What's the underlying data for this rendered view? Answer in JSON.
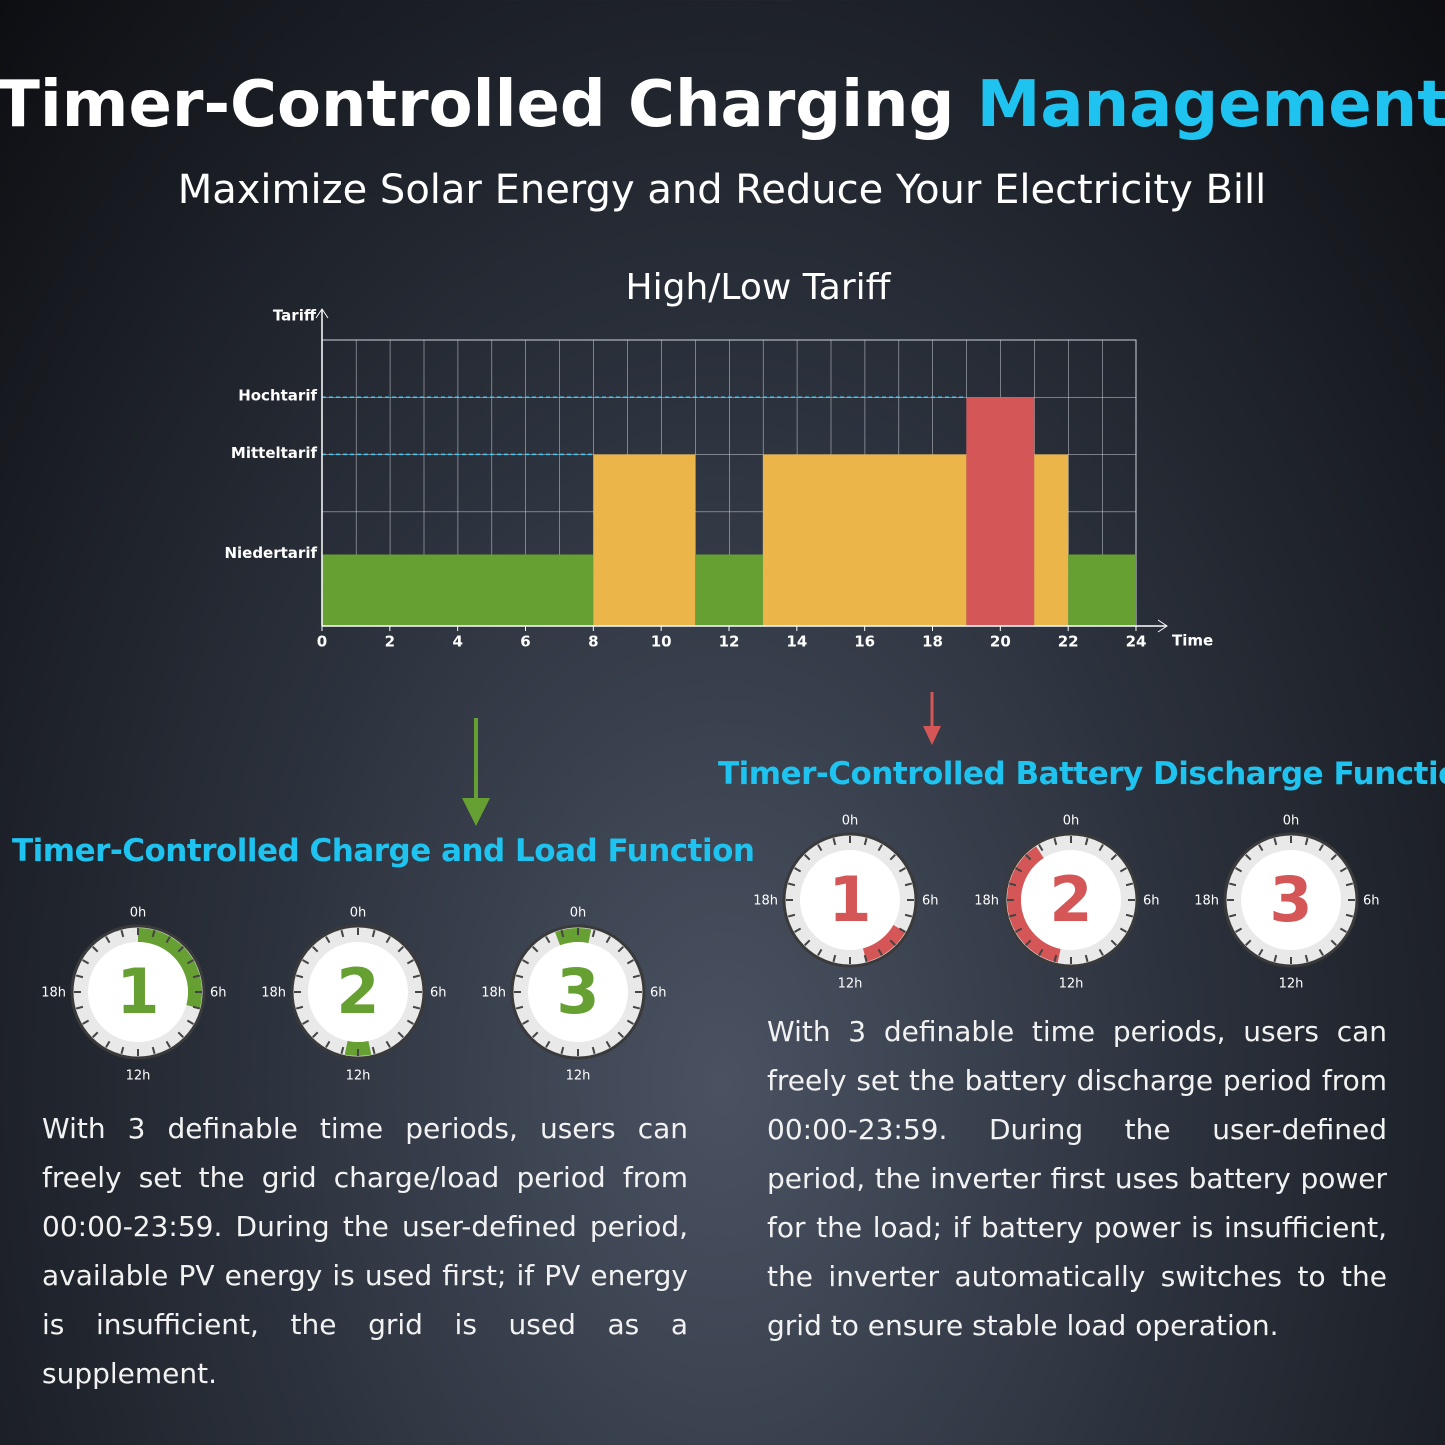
{
  "header": {
    "title": "Timer-Controlled Charging",
    "title_highlight": "Management",
    "subtitle": "Maximize Solar Energy and Reduce Your Electricity Bill"
  },
  "chart_data": {
    "type": "step-bar",
    "title": "High/Low Tariff",
    "x_label": "Time",
    "y_label": "Tariff",
    "xlim": [
      0,
      24
    ],
    "xticks": [
      0,
      2,
      4,
      6,
      8,
      10,
      12,
      14,
      16,
      18,
      20,
      22,
      24
    ],
    "ylim": [
      0,
      5
    ],
    "yticks": [
      {
        "value": 1.25,
        "label": "Niedertarif"
      },
      {
        "value": 3,
        "label": "Mitteltarif"
      },
      {
        "value": 4,
        "label": "Hochtarif"
      }
    ],
    "segments": [
      {
        "start": 0,
        "end": 8,
        "value": 1.25,
        "color": "#67a032"
      },
      {
        "start": 8,
        "end": 11,
        "value": 3,
        "color": "#ecb54a"
      },
      {
        "start": 11,
        "end": 13,
        "value": 1.25,
        "color": "#67a032"
      },
      {
        "start": 13,
        "end": 19,
        "value": 3,
        "color": "#ecb54a"
      },
      {
        "start": 19,
        "end": 21,
        "value": 4,
        "color": "#d45656"
      },
      {
        "start": 21,
        "end": 22,
        "value": 3,
        "color": "#ecb54a"
      },
      {
        "start": 22,
        "end": 24,
        "value": 1.25,
        "color": "#67a032"
      }
    ]
  },
  "dial_labels": [
    "0h",
    "6h",
    "12h",
    "18h"
  ],
  "charge": {
    "heading": "Timer-Controlled Charge and Load Function",
    "color": "#67a032",
    "dials": [
      {
        "label": "1",
        "arc": [
          0,
          7
        ]
      },
      {
        "label": "2",
        "arc": [
          11.2,
          12.8
        ]
      },
      {
        "label": "3",
        "arc": [
          22.6,
          0.8
        ]
      }
    ],
    "text": "With 3 definable time periods, users can freely set the grid charge/load period from 00:00-23:59. During the user-defined period, available PV energy is used first; if PV energy is insufficient, the grid is used as a supplement."
  },
  "discharge": {
    "heading": "Timer-Controlled Battery Discharge Function",
    "color": "#d45656",
    "dials": [
      {
        "label": "1",
        "arc": [
          8,
          11
        ]
      },
      {
        "label": "2",
        "arc": [
          12.8,
          21.8
        ]
      },
      {
        "label": "3",
        "arc": null
      }
    ],
    "text": "With 3 definable time periods, users can freely set the battery discharge period from 00:00-23:59. During the user-defined period, the inverter first uses battery power for the load; if battery power is insufficient, the inverter automatically switches to the grid to ensure stable load operation."
  }
}
